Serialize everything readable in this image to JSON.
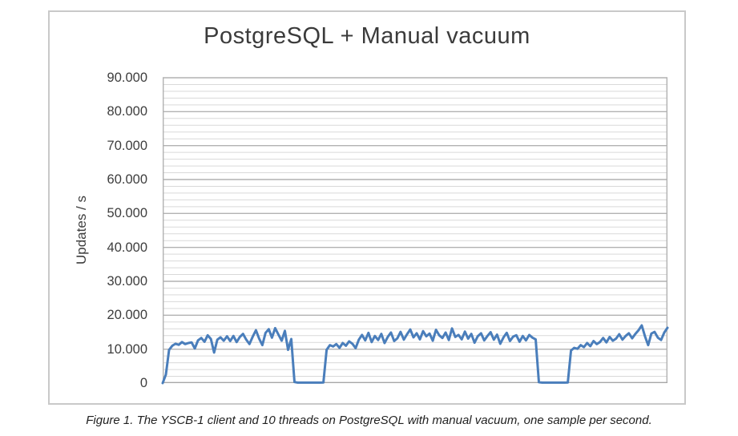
{
  "page": {
    "caption": "Figure 1. The YSCB-1 client and 10 threads on PostgreSQL with manual vacuum, one sample per second."
  },
  "chart": {
    "title": "PostgreSQL + Manual vacuum",
    "ylabel": "Updates / s"
  },
  "colors": {
    "series_line": "#4a7ebb",
    "grid_minor": "#d9d9d9",
    "grid_major": "#b2b2b2",
    "axis_line": "#a6a6a6",
    "chart_border": "#c9c9c9",
    "text": "#3d3d3d"
  },
  "chart_data": {
    "type": "line",
    "title": "PostgreSQL + Manual vacuum",
    "xlabel": "",
    "ylabel": "Updates / s",
    "ylim": [
      0,
      90000
    ],
    "y_major_step": 10000,
    "y_minor_step": 2000,
    "grid": true,
    "legend_position": "none",
    "yticks": [
      {
        "value": 0,
        "label": "0"
      },
      {
        "value": 10000,
        "label": "10.000"
      },
      {
        "value": 20000,
        "label": "20.000"
      },
      {
        "value": 30000,
        "label": "30.000"
      },
      {
        "value": 40000,
        "label": "40.000"
      },
      {
        "value": 50000,
        "label": "50.000"
      },
      {
        "value": 60000,
        "label": "60.000"
      },
      {
        "value": 70000,
        "label": "70.000"
      },
      {
        "value": 80000,
        "label": "80.000"
      },
      {
        "value": 90000,
        "label": "90.000"
      }
    ],
    "series": [
      {
        "name": "Updates / s",
        "color": "#4a7ebb",
        "values": [
          0,
          2500,
          9800,
          11000,
          11600,
          11300,
          12100,
          11500,
          11800,
          12000,
          10200,
          12600,
          13300,
          12200,
          14100,
          13000,
          9000,
          12800,
          13500,
          12500,
          13800,
          12400,
          13900,
          12100,
          13600,
          14500,
          12800,
          11500,
          13700,
          15600,
          13100,
          11200,
          14800,
          15900,
          13400,
          16200,
          14300,
          12500,
          15400,
          9800,
          13000,
          300,
          150,
          150,
          150,
          150,
          150,
          150,
          150,
          150,
          200,
          9800,
          11200,
          10800,
          11500,
          10400,
          11800,
          11000,
          12300,
          11600,
          10300,
          12800,
          14200,
          12600,
          14800,
          12100,
          13900,
          12700,
          14500,
          11800,
          13600,
          14900,
          12400,
          13200,
          15100,
          12800,
          14400,
          15800,
          13500,
          14700,
          12900,
          15300,
          13800,
          14600,
          12500,
          15700,
          14100,
          13300,
          14900,
          12700,
          16100,
          13600,
          14200,
          12900,
          15200,
          13100,
          14500,
          11900,
          13800,
          14700,
          12600,
          13900,
          15000,
          12800,
          14300,
          11600,
          13500,
          14800,
          12400,
          13700,
          14100,
          12200,
          13900,
          12600,
          14200,
          13400,
          12900,
          250,
          150,
          150,
          150,
          150,
          150,
          150,
          150,
          150,
          200,
          9600,
          10400,
          10100,
          11200,
          10600,
          11800,
          10900,
          12400,
          11500,
          12100,
          13300,
          12000,
          13600,
          12500,
          13100,
          14400,
          12800,
          13900,
          14700,
          13200,
          14500,
          15600,
          17000,
          13800,
          11200,
          14600,
          15100,
          13400,
          12700,
          14900,
          16300
        ]
      }
    ]
  }
}
